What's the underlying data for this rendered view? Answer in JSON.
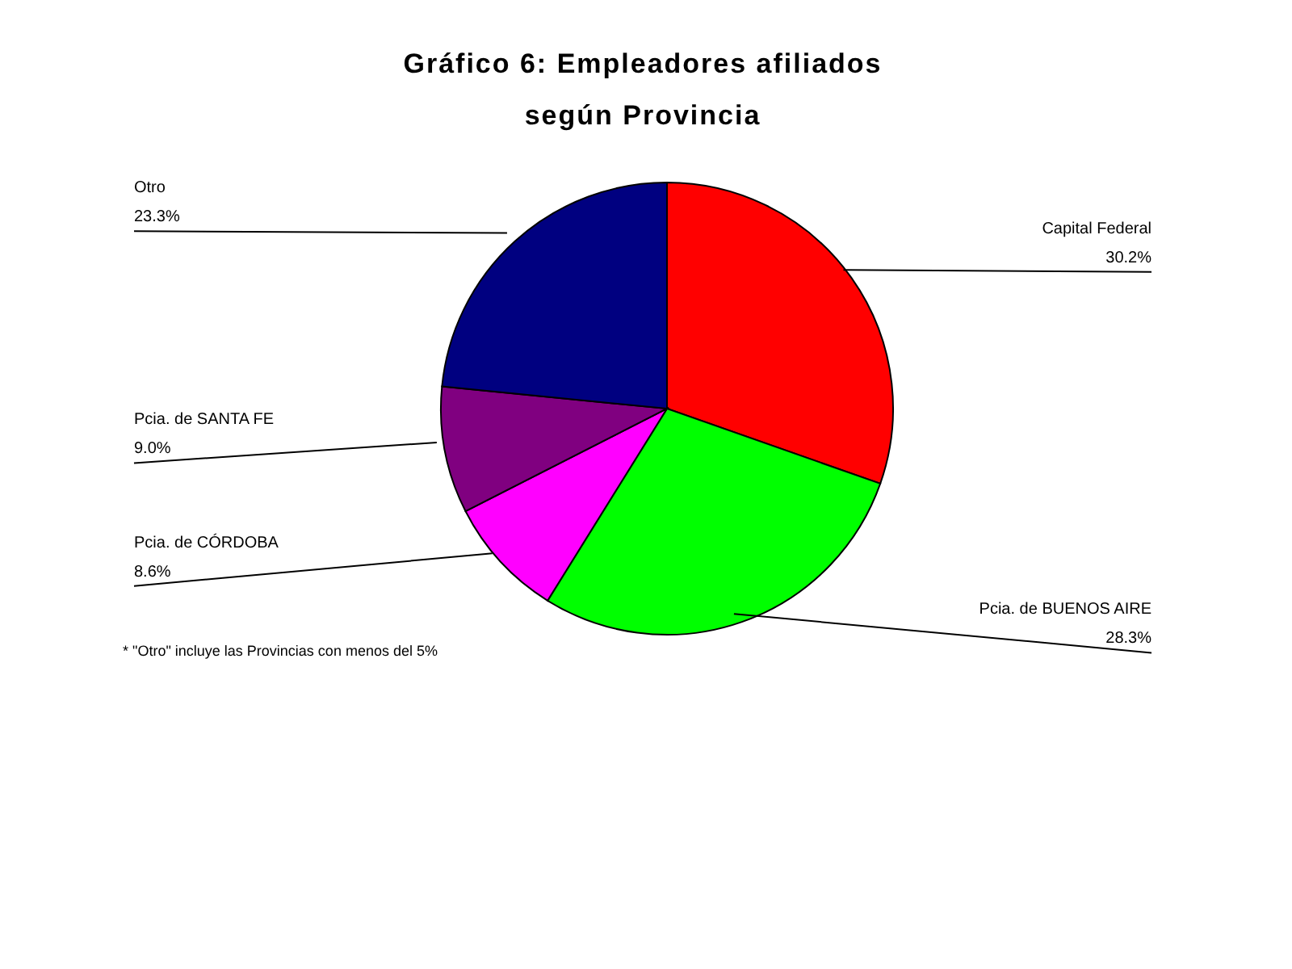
{
  "chart_data": {
    "type": "pie",
    "title": "Gráfico 6: Empleadores afiliados",
    "subtitle": "según Provincia",
    "categories": [
      "Capital Federal",
      "Pcia. de BUENOS AIRE",
      "Pcia. de CÓRDOBA",
      "Pcia. de SANTA FE",
      "Otro"
    ],
    "values": [
      30.2,
      28.3,
      8.6,
      9.0,
      23.3
    ],
    "value_labels": [
      "30.2%",
      "28.3%",
      "8.6%",
      "9.0%",
      "23.3%"
    ],
    "colors": [
      "#ff0000",
      "#00ff00",
      "#ff00ff",
      "#800080",
      "#000080"
    ],
    "annotations": [
      "* \"Otro\" incluye las Provincias con menos del 5%"
    ],
    "legend": false
  }
}
